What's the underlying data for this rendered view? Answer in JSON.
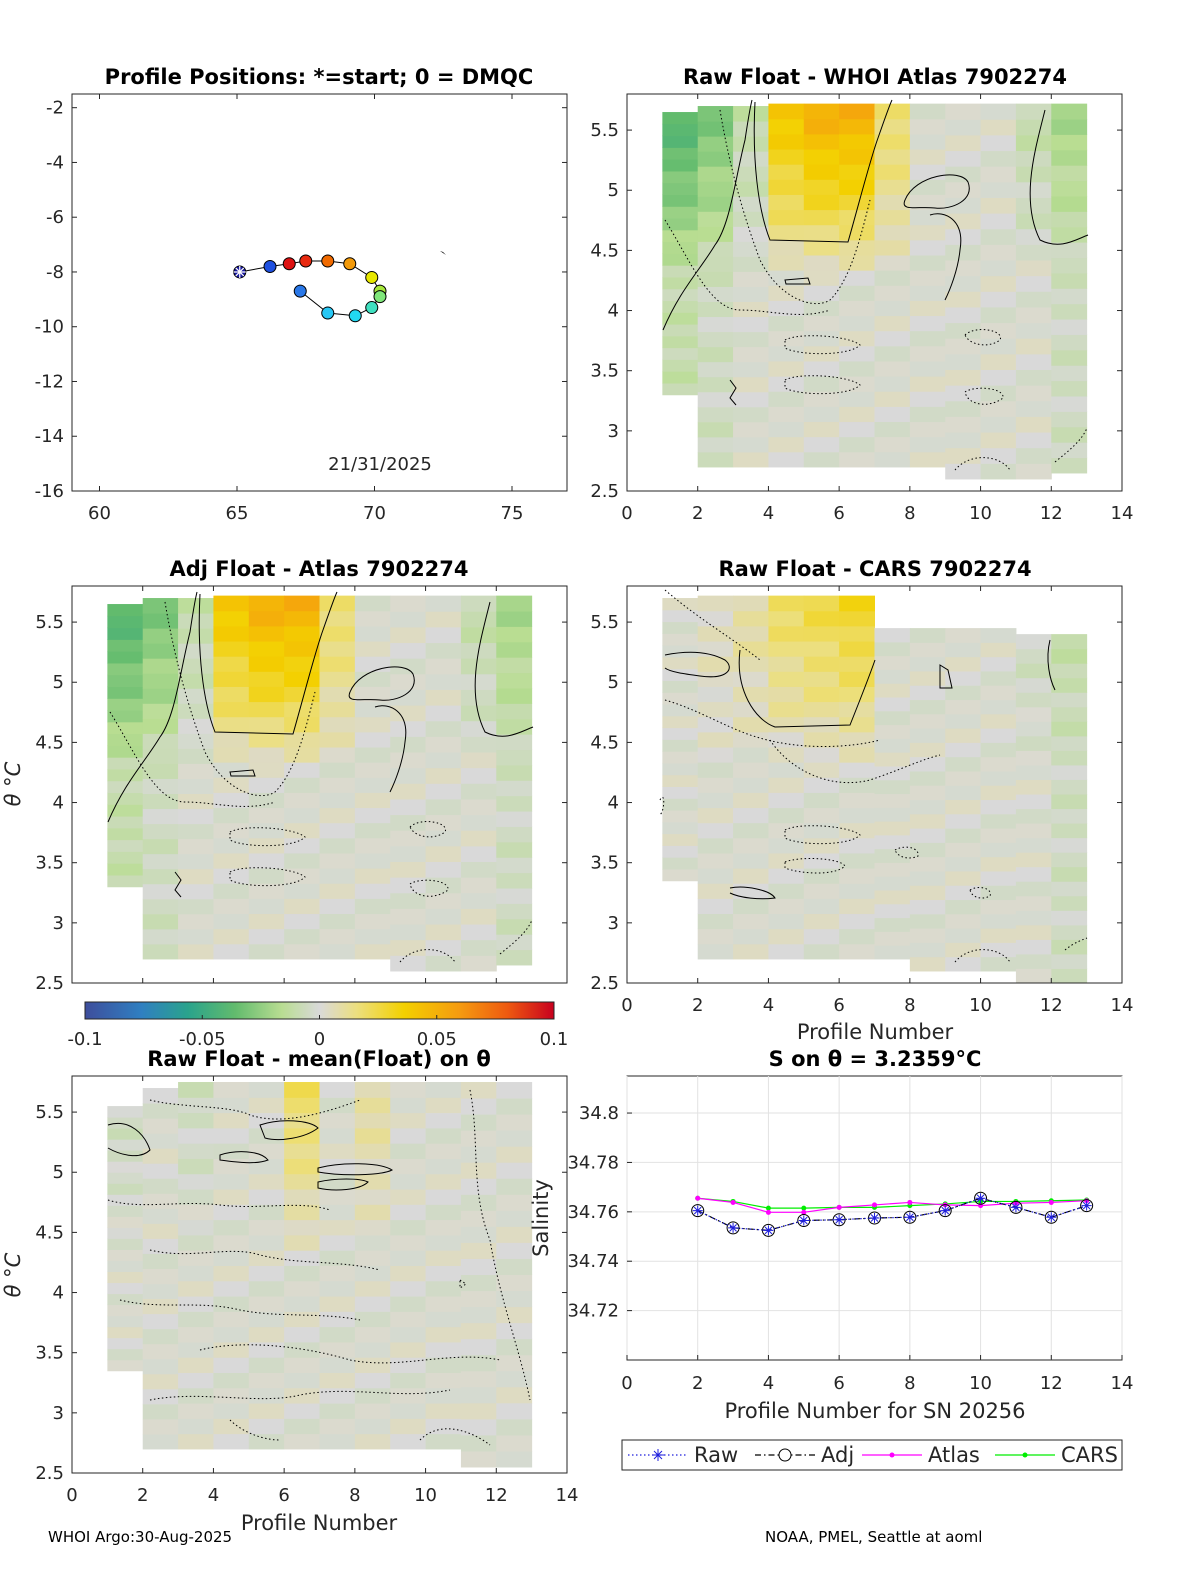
{
  "footer": {
    "left": "WHOI Argo:30-Aug-2025",
    "right": "NOAA, PMEL, Seattle at aoml"
  },
  "panels": {
    "positions": {
      "title": "Profile Positions: *=start; 0 = DMQC",
      "date_label": "21/31/2025"
    },
    "raw_atlas": {
      "title": "Raw Float - WHOI Atlas  7902274"
    },
    "adj_atlas": {
      "title": "Adj Float - Atlas  7902274",
      "ylabel": "θ °C"
    },
    "raw_cars": {
      "title": "Raw Float - CARS  7902274",
      "xlabel": "Profile Number"
    },
    "raw_mean": {
      "title": "Raw Float - mean(Float) on θ",
      "xlabel": "Profile Number",
      "ylabel": "θ °C"
    },
    "salinity": {
      "title": "S on θ = 3.2359°C",
      "xlabel": "Profile Number for SN 20256",
      "ylabel": "Salinity"
    }
  },
  "colorbar": {
    "ticks": [
      "-0.1",
      "-0.05",
      "0",
      "0.05",
      "0.1"
    ]
  },
  "colors": {
    "raw": "#1f1fdd",
    "adj": "#000000",
    "atlas": "#ff00ff",
    "cars": "#00ee00"
  },
  "chart_data": [
    {
      "type": "scatter",
      "title": "Profile Positions: *=start; 0 = DMQC",
      "xlim": [
        59,
        77
      ],
      "ylim": [
        -16,
        -1.5
      ],
      "xticks": [
        "60",
        "65",
        "70",
        "75"
      ],
      "yticks": [
        "-2",
        "-4",
        "-6",
        "-8",
        "-10",
        "-12",
        "-14",
        "-16"
      ],
      "annotation": "21/31/2025",
      "points": [
        {
          "lon": 65.1,
          "lat": -8.0,
          "color": "#1a1aa0",
          "start": true
        },
        {
          "lon": 66.2,
          "lat": -7.8,
          "color": "#1e50e0"
        },
        {
          "lon": 66.9,
          "lat": -7.7,
          "color": "#dd1111"
        },
        {
          "lon": 67.5,
          "lat": -7.6,
          "color": "#e82a10"
        },
        {
          "lon": 68.3,
          "lat": -7.6,
          "color": "#f06a00"
        },
        {
          "lon": 69.1,
          "lat": -7.7,
          "color": "#f39a0a"
        },
        {
          "lon": 69.9,
          "lat": -8.2,
          "color": "#e8e800"
        },
        {
          "lon": 70.2,
          "lat": -8.7,
          "color": "#a6e83c"
        },
        {
          "lon": 70.2,
          "lat": -8.9,
          "color": "#7fe67a"
        },
        {
          "lon": 69.9,
          "lat": -9.3,
          "color": "#3fe0c0"
        },
        {
          "lon": 69.3,
          "lat": -9.6,
          "color": "#22d8f0"
        },
        {
          "lon": 68.3,
          "lat": -9.5,
          "color": "#28c8f5"
        },
        {
          "lon": 67.3,
          "lat": -8.7,
          "color": "#2a78e8"
        }
      ]
    },
    {
      "type": "heatmap",
      "title": "Raw Float - WHOI Atlas  7902274",
      "xlim": [
        0,
        14
      ],
      "ylim": [
        2.5,
        5.8
      ],
      "xticks": [
        "0",
        "2",
        "4",
        "6",
        "8",
        "10",
        "12",
        "14"
      ],
      "yticks": [
        "2.5",
        "3",
        "3.5",
        "4",
        "4.5",
        "5",
        "5.5"
      ],
      "clim": [
        -0.1,
        0.1
      ],
      "anomalies": [
        {
          "x": 1,
          "ymin": 3.3,
          "ymax": 5.65,
          "v": -0.01,
          "hi": -0.04
        },
        {
          "x": 2,
          "ymin": 2.7,
          "ymax": 5.7,
          "v": -0.005,
          "hi": -0.03
        },
        {
          "x": 3,
          "ymin": 2.7,
          "ymax": 5.7,
          "v": 0.0,
          "hi": -0.01
        },
        {
          "x": 4,
          "ymin": 2.7,
          "ymax": 5.72,
          "v": 0.0,
          "hi": 0.04
        },
        {
          "x": 5,
          "ymin": 2.7,
          "ymax": 5.72,
          "v": 0.0,
          "hi": 0.05
        },
        {
          "x": 6,
          "ymin": 2.7,
          "ymax": 5.72,
          "v": 0.0,
          "hi": 0.05
        },
        {
          "x": 7,
          "ymin": 2.7,
          "ymax": 5.72,
          "v": 0.0,
          "hi": 0.02
        },
        {
          "x": 8,
          "ymin": 2.7,
          "ymax": 5.72,
          "v": 0.0,
          "hi": 0.0
        },
        {
          "x": 9,
          "ymin": 2.6,
          "ymax": 5.72,
          "v": 0.0,
          "hi": 0.0
        },
        {
          "x": 10,
          "ymin": 2.6,
          "ymax": 5.72,
          "v": 0.0,
          "hi": 0.0
        },
        {
          "x": 11,
          "ymin": 2.6,
          "ymax": 5.72,
          "v": 0.0,
          "hi": -0.01
        },
        {
          "x": 12,
          "ymin": 2.65,
          "ymax": 5.72,
          "v": -0.005,
          "hi": -0.02
        }
      ]
    },
    {
      "type": "heatmap",
      "title": "Adj Float - Atlas  7902274",
      "xlim": [
        0,
        14
      ],
      "ylim": [
        2.5,
        5.8
      ],
      "yticks": [
        "2.5",
        "3",
        "3.5",
        "4",
        "4.5",
        "5",
        "5.5"
      ],
      "ylabel": "θ °C",
      "clim": [
        -0.1,
        0.1
      ],
      "anomalies": [
        {
          "x": 1,
          "ymin": 3.3,
          "ymax": 5.65,
          "v": -0.01,
          "hi": -0.04
        },
        {
          "x": 2,
          "ymin": 2.7,
          "ymax": 5.7,
          "v": -0.005,
          "hi": -0.03
        },
        {
          "x": 3,
          "ymin": 2.7,
          "ymax": 5.7,
          "v": 0.0,
          "hi": -0.01
        },
        {
          "x": 4,
          "ymin": 2.7,
          "ymax": 5.72,
          "v": 0.0,
          "hi": 0.04
        },
        {
          "x": 5,
          "ymin": 2.7,
          "ymax": 5.72,
          "v": 0.0,
          "hi": 0.05
        },
        {
          "x": 6,
          "ymin": 2.7,
          "ymax": 5.72,
          "v": 0.0,
          "hi": 0.05
        },
        {
          "x": 7,
          "ymin": 2.7,
          "ymax": 5.72,
          "v": 0.0,
          "hi": 0.02
        },
        {
          "x": 8,
          "ymin": 2.7,
          "ymax": 5.72,
          "v": 0.0,
          "hi": 0.0
        },
        {
          "x": 9,
          "ymin": 2.6,
          "ymax": 5.72,
          "v": 0.0,
          "hi": 0.0
        },
        {
          "x": 10,
          "ymin": 2.6,
          "ymax": 5.72,
          "v": 0.0,
          "hi": 0.0
        },
        {
          "x": 11,
          "ymin": 2.6,
          "ymax": 5.72,
          "v": 0.0,
          "hi": -0.01
        },
        {
          "x": 12,
          "ymin": 2.65,
          "ymax": 5.72,
          "v": -0.005,
          "hi": -0.02
        }
      ]
    },
    {
      "type": "heatmap",
      "title": "Raw Float - CARS  7902274",
      "xlim": [
        0,
        14
      ],
      "ylim": [
        2.5,
        5.8
      ],
      "xticks": [
        "0",
        "2",
        "4",
        "6",
        "8",
        "10",
        "12",
        "14"
      ],
      "yticks": [
        "2.5",
        "3",
        "3.5",
        "4",
        "4.5",
        "5",
        "5.5"
      ],
      "xlabel": "Profile Number",
      "clim": [
        -0.1,
        0.1
      ],
      "anomalies": [
        {
          "x": 1,
          "ymin": 3.35,
          "ymax": 5.7,
          "v": 0.0,
          "hi": 0.0
        },
        {
          "x": 2,
          "ymin": 2.7,
          "ymax": 5.72,
          "v": 0.0,
          "hi": 0.005
        },
        {
          "x": 3,
          "ymin": 2.7,
          "ymax": 5.72,
          "v": 0.0,
          "hi": 0.01
        },
        {
          "x": 4,
          "ymin": 2.7,
          "ymax": 5.72,
          "v": 0.0,
          "hi": 0.02
        },
        {
          "x": 5,
          "ymin": 2.7,
          "ymax": 5.72,
          "v": 0.0,
          "hi": 0.025
        },
        {
          "x": 6,
          "ymin": 2.7,
          "ymax": 5.72,
          "v": 0.0,
          "hi": 0.03
        },
        {
          "x": 7,
          "ymin": 2.7,
          "ymax": 5.45,
          "v": 0.0,
          "hi": 0.0
        },
        {
          "x": 8,
          "ymin": 2.6,
          "ymax": 5.45,
          "v": 0.0,
          "hi": 0.0
        },
        {
          "x": 9,
          "ymin": 2.6,
          "ymax": 5.45,
          "v": 0.0,
          "hi": 0.0
        },
        {
          "x": 10,
          "ymin": 2.6,
          "ymax": 5.45,
          "v": 0.0,
          "hi": 0.0
        },
        {
          "x": 11,
          "ymin": 2.5,
          "ymax": 5.4,
          "v": 0.0,
          "hi": -0.005
        },
        {
          "x": 12,
          "ymin": 2.5,
          "ymax": 5.4,
          "v": -0.005,
          "hi": -0.01
        }
      ]
    },
    {
      "type": "heatmap",
      "title": "Raw Float - mean(Float) on θ",
      "xlim": [
        0,
        14
      ],
      "ylim": [
        2.5,
        5.8
      ],
      "xticks": [
        "0",
        "2",
        "4",
        "6",
        "8",
        "10",
        "12",
        "14"
      ],
      "yticks": [
        "2.5",
        "3",
        "3.5",
        "4",
        "4.5",
        "5",
        "5.5"
      ],
      "xlabel": "Profile Number",
      "ylabel": "θ °C",
      "clim": [
        -0.1,
        0.1
      ],
      "anomalies": [
        {
          "x": 1,
          "ymin": 3.35,
          "ymax": 5.55,
          "v": 0.0,
          "hi": -0.005
        },
        {
          "x": 2,
          "ymin": 2.7,
          "ymax": 5.7,
          "v": 0.0,
          "hi": 0.0
        },
        {
          "x": 3,
          "ymin": 2.7,
          "ymax": 5.75,
          "v": 0.0,
          "hi": -0.005
        },
        {
          "x": 4,
          "ymin": 2.7,
          "ymax": 5.75,
          "v": 0.0,
          "hi": 0.0
        },
        {
          "x": 5,
          "ymin": 2.7,
          "ymax": 5.75,
          "v": 0.0,
          "hi": 0.0
        },
        {
          "x": 6,
          "ymin": 2.7,
          "ymax": 5.75,
          "v": 0.0,
          "hi": 0.02
        },
        {
          "x": 7,
          "ymin": 2.7,
          "ymax": 5.75,
          "v": 0.0,
          "hi": 0.0
        },
        {
          "x": 8,
          "ymin": 2.7,
          "ymax": 5.75,
          "v": 0.0,
          "hi": 0.01
        },
        {
          "x": 9,
          "ymin": 2.7,
          "ymax": 5.75,
          "v": 0.0,
          "hi": 0.0
        },
        {
          "x": 10,
          "ymin": 2.7,
          "ymax": 5.75,
          "v": 0.0,
          "hi": 0.0
        },
        {
          "x": 11,
          "ymin": 2.55,
          "ymax": 5.75,
          "v": 0.0,
          "hi": 0.0
        },
        {
          "x": 12,
          "ymin": 2.55,
          "ymax": 5.75,
          "v": 0.0,
          "hi": 0.0
        }
      ]
    },
    {
      "type": "line",
      "title": "S on θ = 3.2359°C",
      "xlim": [
        0,
        14
      ],
      "ylim": [
        34.7,
        34.815
      ],
      "xticks": [
        "0",
        "2",
        "4",
        "6",
        "8",
        "10",
        "12",
        "14"
      ],
      "yticks": [
        "34.72",
        "34.74",
        "34.76",
        "34.78",
        "34.8"
      ],
      "xlabel": "Profile Number for SN 20256",
      "ylabel": "Salinity",
      "x": [
        2,
        3,
        4,
        5,
        6,
        7,
        8,
        9,
        10,
        11,
        12,
        13
      ],
      "series": [
        {
          "name": "Raw",
          "values": [
            34.7605,
            34.7535,
            34.7525,
            34.7565,
            34.7568,
            34.7575,
            34.7578,
            34.7605,
            34.7655,
            34.7618,
            34.7578,
            34.7625
          ]
        },
        {
          "name": "Adj",
          "values": [
            34.7605,
            34.7535,
            34.7525,
            34.7565,
            34.7568,
            34.7575,
            34.7578,
            34.7605,
            34.7655,
            34.7618,
            34.7578,
            34.7625
          ]
        },
        {
          "name": "Atlas",
          "values": [
            34.7655,
            34.7638,
            34.7598,
            34.7598,
            34.7618,
            34.7628,
            34.7638,
            34.7628,
            34.7625,
            34.7635,
            34.7638,
            34.7645
          ]
        },
        {
          "name": "CARS",
          "values": [
            34.7655,
            34.7642,
            34.7615,
            34.7615,
            34.7618,
            34.7618,
            34.7625,
            34.7632,
            34.7642,
            34.7642,
            34.7645,
            34.7648
          ]
        }
      ]
    }
  ]
}
